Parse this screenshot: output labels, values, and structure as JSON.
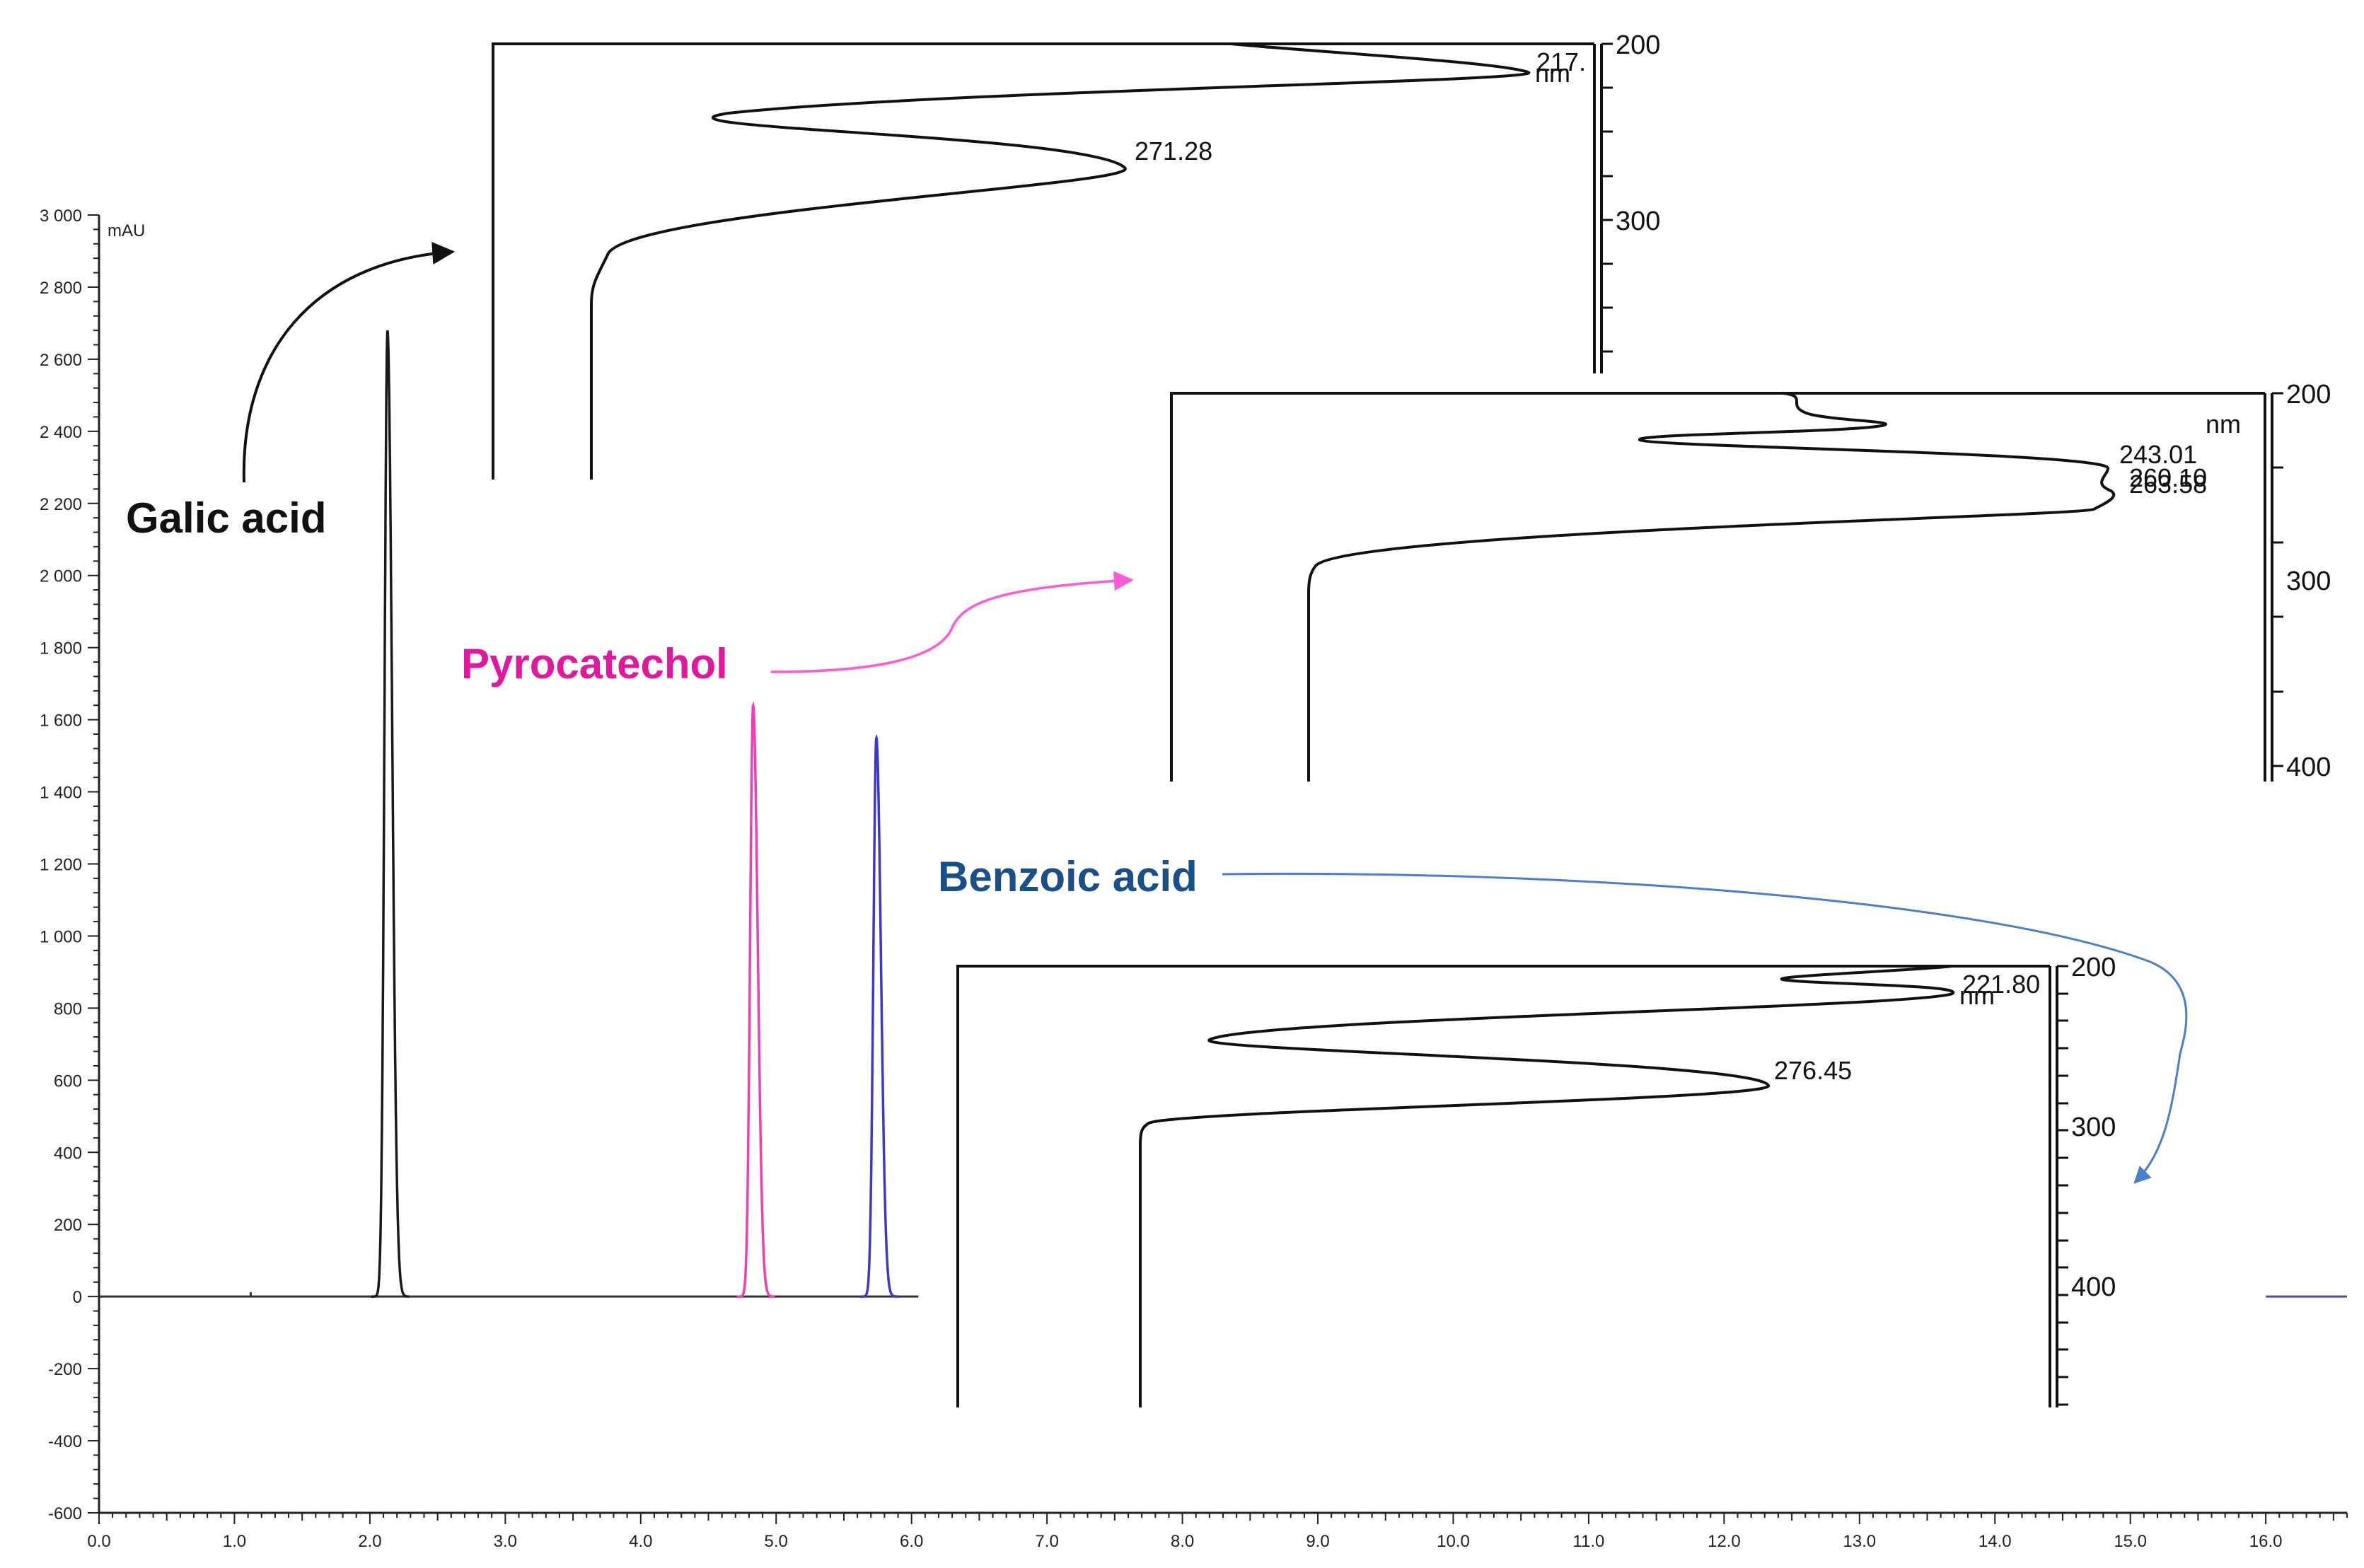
{
  "chart_data": [
    {
      "type": "line",
      "title": "",
      "xlabel": "",
      "ylabel": "mAU",
      "xlim": [
        0,
        16.6
      ],
      "ylim": [
        -600,
        3000
      ],
      "grid": false,
      "x_ticks": [
        "0.0",
        "1.0",
        "2.0",
        "3.0",
        "4.0",
        "5.0",
        "6.0",
        "7.0",
        "8.0",
        "9.0",
        "10.0",
        "11.0",
        "12.0",
        "13.0",
        "14.0",
        "15.0",
        "16.0"
      ],
      "y_ticks": [
        "3 000",
        "2 800",
        "2 600",
        "2 400",
        "2 200",
        "2 000",
        "1 800",
        "1 600",
        "1 400",
        "1 200",
        "1 000",
        "800",
        "600",
        "400",
        "200",
        "0",
        "-200",
        "-400",
        "-600"
      ],
      "series": [
        {
          "name": "Galic acid",
          "color": "#1a1a1a",
          "peak_x": 2.13,
          "peak_y": 2680
        },
        {
          "name": "Pyrocatechol",
          "color": "#ee3fb4",
          "peak_x": 4.83,
          "peak_y": 1640
        },
        {
          "name": "Benzoic acid",
          "color": "#3a3ac8",
          "peak_x": 5.74,
          "peak_y": 1550
        }
      ]
    },
    {
      "type": "line",
      "title": "",
      "ylabel": "nm",
      "y_ticks": [
        "200",
        "300"
      ],
      "peak_labels": [
        "217.",
        "271.28"
      ]
    },
    {
      "type": "line",
      "title": "",
      "ylabel": "nm",
      "y_ticks": [
        "200",
        "300",
        "400"
      ],
      "peak_labels": [
        "243.01",
        "260.10",
        "263.58"
      ]
    },
    {
      "type": "line",
      "title": "",
      "ylabel": "nm",
      "y_ticks": [
        "200",
        "300",
        "400"
      ],
      "peak_labels": [
        "221.80",
        "276.45"
      ]
    }
  ],
  "compounds": {
    "galic": {
      "label": "Galic acid",
      "color": "#111111"
    },
    "pyrocatechol": {
      "label": "Pyrocatechol",
      "color": "#e0189e"
    },
    "benzoic": {
      "label": "Benzoic acid",
      "color": "#1b4f8a"
    }
  },
  "arrow_colors": {
    "galic": "#111111",
    "pyrocatechol": "#ff5ad2",
    "benzoic": "#4a7ecf"
  }
}
